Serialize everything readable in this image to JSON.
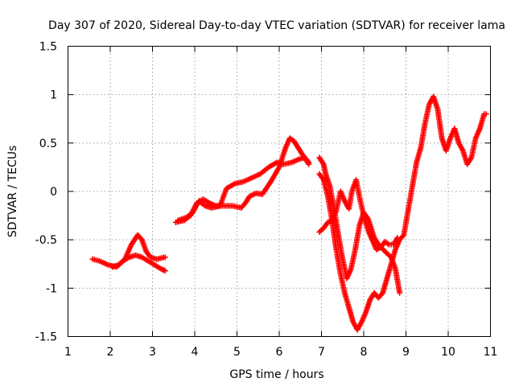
{
  "chart_data": {
    "type": "scatter",
    "title": "Day 307 of 2020, Sidereal Day-to-day VTEC variation (SDTVAR) for receiver lama",
    "xlabel": "GPS time / hours",
    "ylabel": "SDTVAR / TECUs",
    "xlim": [
      1,
      11
    ],
    "ylim": [
      -1.5,
      1.5
    ],
    "xticks": [
      1,
      2,
      3,
      4,
      5,
      6,
      7,
      8,
      9,
      10,
      11
    ],
    "xtick_labels": [
      "1",
      "2",
      "3",
      "4",
      "5",
      "6",
      "7",
      "8",
      "9",
      "10",
      "11"
    ],
    "yticks": [
      -1.5,
      -1,
      -0.5,
      0,
      0.5,
      1,
      1.5
    ],
    "ytick_labels": [
      "-1.5",
      "-1",
      "-0.5",
      "0",
      "0.5",
      "1",
      "1.5"
    ],
    "grid": true,
    "marker": "+",
    "color": "#ff0000",
    "series": [
      {
        "name": "track-1",
        "points": [
          [
            1.58,
            -0.7
          ],
          [
            1.75,
            -0.72
          ],
          [
            1.95,
            -0.76
          ],
          [
            2.15,
            -0.78
          ],
          [
            2.3,
            -0.72
          ],
          [
            2.45,
            -0.68
          ],
          [
            2.6,
            -0.66
          ],
          [
            2.75,
            -0.68
          ],
          [
            2.9,
            -0.72
          ],
          [
            3.05,
            -0.76
          ],
          [
            3.2,
            -0.8
          ],
          [
            3.3,
            -0.82
          ]
        ]
      },
      {
        "name": "track-2",
        "points": [
          [
            2.05,
            -0.78
          ],
          [
            2.2,
            -0.76
          ],
          [
            2.35,
            -0.7
          ],
          [
            2.5,
            -0.55
          ],
          [
            2.65,
            -0.45
          ],
          [
            2.75,
            -0.5
          ],
          [
            2.85,
            -0.62
          ],
          [
            2.95,
            -0.68
          ],
          [
            3.1,
            -0.7
          ],
          [
            3.3,
            -0.68
          ]
        ]
      },
      {
        "name": "track-3",
        "points": [
          [
            3.55,
            -0.32
          ],
          [
            3.75,
            -0.3
          ],
          [
            3.9,
            -0.25
          ],
          [
            4.05,
            -0.12
          ],
          [
            4.2,
            -0.08
          ],
          [
            4.35,
            -0.12
          ],
          [
            4.5,
            -0.15
          ],
          [
            4.7,
            -0.15
          ],
          [
            4.9,
            -0.15
          ],
          [
            5.1,
            -0.17
          ],
          [
            5.2,
            -0.12
          ],
          [
            5.3,
            -0.05
          ],
          [
            5.45,
            -0.02
          ],
          [
            5.6,
            -0.03
          ],
          [
            5.8,
            0.1
          ],
          [
            6.0,
            0.25
          ],
          [
            6.15,
            0.45
          ],
          [
            6.25,
            0.55
          ],
          [
            6.35,
            0.52
          ],
          [
            6.45,
            0.45
          ],
          [
            6.55,
            0.38
          ],
          [
            6.7,
            0.3
          ]
        ]
      },
      {
        "name": "track-4",
        "points": [
          [
            3.6,
            -0.3
          ],
          [
            3.8,
            -0.27
          ],
          [
            3.95,
            -0.22
          ],
          [
            4.1,
            -0.1
          ],
          [
            4.25,
            -0.15
          ],
          [
            4.4,
            -0.17
          ],
          [
            4.6,
            -0.15
          ],
          [
            4.75,
            0.03
          ],
          [
            4.95,
            0.08
          ],
          [
            5.15,
            0.1
          ],
          [
            5.35,
            0.14
          ],
          [
            5.55,
            0.18
          ],
          [
            5.75,
            0.25
          ],
          [
            5.95,
            0.3
          ],
          [
            6.1,
            0.28
          ],
          [
            6.3,
            0.3
          ],
          [
            6.45,
            0.33
          ],
          [
            6.6,
            0.35
          ],
          [
            6.7,
            0.28
          ]
        ]
      },
      {
        "name": "track-5",
        "points": [
          [
            6.95,
            0.35
          ],
          [
            7.05,
            0.28
          ],
          [
            7.1,
            0.18
          ],
          [
            7.2,
            0.05
          ],
          [
            7.3,
            -0.18
          ],
          [
            7.4,
            -0.45
          ],
          [
            7.5,
            -0.7
          ],
          [
            7.6,
            -0.9
          ],
          [
            7.7,
            -0.8
          ],
          [
            7.8,
            -0.6
          ],
          [
            7.9,
            -0.35
          ],
          [
            8.0,
            -0.22
          ],
          [
            8.1,
            -0.28
          ],
          [
            8.25,
            -0.48
          ],
          [
            8.35,
            -0.55
          ],
          [
            8.5,
            -0.62
          ],
          [
            8.65,
            -0.68
          ],
          [
            8.75,
            -0.8
          ],
          [
            8.85,
            -1.05
          ]
        ]
      },
      {
        "name": "track-6",
        "points": [
          [
            6.95,
            -0.42
          ],
          [
            7.05,
            -0.38
          ],
          [
            7.15,
            -0.32
          ],
          [
            7.25,
            -0.3
          ],
          [
            7.35,
            -0.2
          ],
          [
            7.45,
            0.0
          ],
          [
            7.55,
            -0.1
          ],
          [
            7.65,
            -0.18
          ],
          [
            7.72,
            0.0
          ],
          [
            7.82,
            0.12
          ],
          [
            7.92,
            -0.1
          ],
          [
            8.0,
            -0.25
          ],
          [
            8.1,
            -0.4
          ],
          [
            8.2,
            -0.5
          ],
          [
            8.3,
            -0.6
          ],
          [
            8.4,
            -0.58
          ],
          [
            8.5,
            -0.52
          ],
          [
            8.6,
            -0.55
          ],
          [
            8.7,
            -0.55
          ],
          [
            8.8,
            -0.48
          ]
        ]
      },
      {
        "name": "track-7",
        "points": [
          [
            6.95,
            0.18
          ],
          [
            7.05,
            0.12
          ],
          [
            7.15,
            -0.05
          ],
          [
            7.25,
            -0.3
          ],
          [
            7.35,
            -0.6
          ],
          [
            7.45,
            -0.85
          ],
          [
            7.55,
            -1.05
          ],
          [
            7.65,
            -1.2
          ],
          [
            7.75,
            -1.35
          ],
          [
            7.85,
            -1.43
          ],
          [
            7.95,
            -1.35
          ],
          [
            8.05,
            -1.25
          ],
          [
            8.15,
            -1.12
          ],
          [
            8.25,
            -1.05
          ],
          [
            8.35,
            -1.1
          ],
          [
            8.45,
            -1.05
          ],
          [
            8.55,
            -0.9
          ],
          [
            8.65,
            -0.75
          ],
          [
            8.75,
            -0.6
          ],
          [
            8.85,
            -0.5
          ],
          [
            8.95,
            -0.45
          ],
          [
            9.05,
            -0.2
          ],
          [
            9.15,
            0.05
          ],
          [
            9.25,
            0.3
          ],
          [
            9.35,
            0.45
          ],
          [
            9.45,
            0.7
          ],
          [
            9.55,
            0.9
          ],
          [
            9.65,
            0.98
          ],
          [
            9.75,
            0.85
          ],
          [
            9.85,
            0.55
          ],
          [
            9.95,
            0.42
          ],
          [
            10.05,
            0.55
          ],
          [
            10.15,
            0.65
          ],
          [
            10.25,
            0.5
          ],
          [
            10.35,
            0.42
          ],
          [
            10.45,
            0.28
          ],
          [
            10.55,
            0.35
          ],
          [
            10.65,
            0.55
          ],
          [
            10.75,
            0.65
          ],
          [
            10.85,
            0.8
          ],
          [
            10.9,
            0.8
          ]
        ]
      }
    ]
  }
}
